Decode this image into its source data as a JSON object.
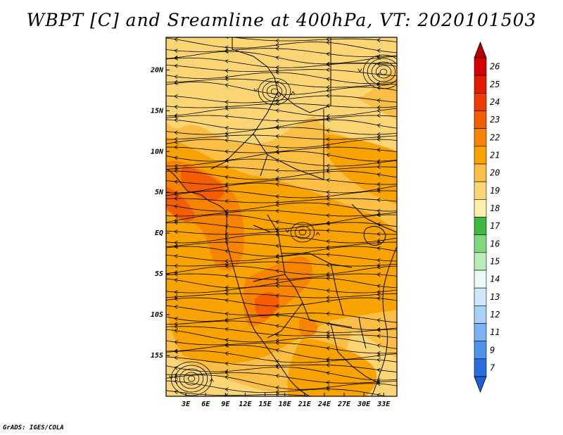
{
  "title": "WBPT [C] and Sreamline at 400hPa, VT: 2020101503",
  "credit": "GrADS: IGES/COLA",
  "map": {
    "variable": "Wet-bulb potential temperature",
    "units": "C",
    "level": "400hPa",
    "valid_time": "2020101503",
    "lon_range": [
      0,
      35
    ],
    "lat_range": [
      -20,
      24
    ],
    "lat_ticks": [
      {
        "value": 20,
        "label": "20N"
      },
      {
        "value": 15,
        "label": "15N"
      },
      {
        "value": 10,
        "label": "10N"
      },
      {
        "value": 5,
        "label": "5N"
      },
      {
        "value": 0,
        "label": "EQ"
      },
      {
        "value": -5,
        "label": "5S"
      },
      {
        "value": -10,
        "label": "10S"
      },
      {
        "value": -15,
        "label": "15S"
      }
    ],
    "lon_ticks": [
      {
        "value": 3,
        "label": "3E"
      },
      {
        "value": 6,
        "label": "6E"
      },
      {
        "value": 9,
        "label": "9E"
      },
      {
        "value": 12,
        "label": "12E"
      },
      {
        "value": 15,
        "label": "15E"
      },
      {
        "value": 18,
        "label": "18E"
      },
      {
        "value": 21,
        "label": "21E"
      },
      {
        "value": 24,
        "label": "24E"
      },
      {
        "value": 27,
        "label": "27E"
      },
      {
        "value": 30,
        "label": "30E"
      },
      {
        "value": 33,
        "label": "33E"
      }
    ]
  },
  "colorbar": {
    "levels": [
      "26",
      "25",
      "24",
      "23",
      "22",
      "21",
      "20",
      "19",
      "18",
      "17",
      "16",
      "15",
      "14",
      "13",
      "12",
      "11",
      "9",
      "7"
    ],
    "colors": [
      "#d40000",
      "#e31b00",
      "#ef3a00",
      "#f55e00",
      "#f78400",
      "#f9a300",
      "#fbbf45",
      "#fcd675",
      "#fdf0a8",
      "#3cb83c",
      "#7ed97e",
      "#b8ecb8",
      "#eafaf4",
      "#cde8fa",
      "#a6d2f7",
      "#7cb4f2",
      "#4e92ea",
      "#2a6fe0"
    ],
    "top_arrow_color": "#b30000",
    "bottom_arrow_color": "#1f5fd6"
  },
  "field_colors": {
    "background": "#fbbf45",
    "light": "#fcd675",
    "mid": "#f9a300",
    "warm": "#f78400",
    "hot": "#f55e00"
  }
}
